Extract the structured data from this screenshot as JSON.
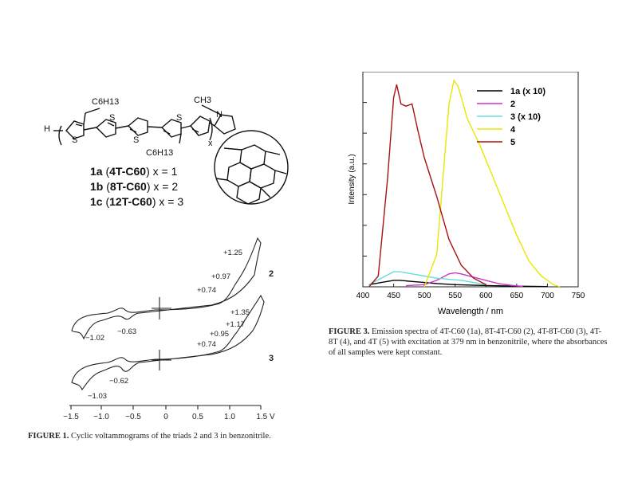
{
  "molecule": {
    "substituent_top": "C6H13",
    "substituent_bottom": "C6H13",
    "methyl": "CH3",
    "end_h": "H",
    "atom_n": "N",
    "atoms_s": [
      "S",
      "S",
      "S",
      "S"
    ],
    "repeat_x": "x",
    "compounds": [
      {
        "id": "1a",
        "name": "4T-C60",
        "x": "x = 1"
      },
      {
        "id": "1b",
        "name": "8T-C60",
        "x": "x = 2"
      },
      {
        "id": "1c",
        "name": "12T-C60",
        "x": "x = 3"
      }
    ]
  },
  "figure1": {
    "caption_label": "FIGURE 1.",
    "caption_text": "Cyclic voltammograms of the triads 2 and 3 in benzonitrile.",
    "curve_labels": [
      "2",
      "3"
    ],
    "annotations_2": [
      "+1.25",
      "+0.97",
      "+0.74",
      "−0.63",
      "−1.02"
    ],
    "annotations_3": [
      "+1.35",
      "+1.17",
      "+0.95",
      "+0.74",
      "−0.62",
      "−1.03"
    ],
    "x_ticks": [
      "−1.5",
      "−1.0",
      "−0.5",
      "0",
      "0.5",
      "1.0",
      "1.5 V"
    ]
  },
  "chart_data": {
    "type": "line",
    "title": "",
    "xlabel": "Wavelength / nm",
    "ylabel": "Intensity (a.u.)",
    "xlim": [
      400,
      750
    ],
    "x_ticks": [
      "400",
      "450",
      "500",
      "550",
      "600",
      "650",
      "700",
      "750"
    ],
    "legend_position": "top-right",
    "series": [
      {
        "name": "1a (x 10)",
        "color": "#000000",
        "x": [
          410,
          430,
          450,
          460,
          480,
          500,
          520,
          550,
          600,
          650,
          700
        ],
        "y": [
          0.01,
          0.02,
          0.03,
          0.03,
          0.025,
          0.02,
          0.015,
          0.01,
          0.006,
          0.003,
          0.001
        ]
      },
      {
        "name": "2",
        "color": "#cc33cc",
        "x": [
          470,
          500,
          520,
          540,
          550,
          560,
          580,
          600,
          620,
          640,
          660
        ],
        "y": [
          0.005,
          0.01,
          0.03,
          0.06,
          0.065,
          0.06,
          0.045,
          0.03,
          0.015,
          0.007,
          0.002
        ]
      },
      {
        "name": "3 (x 10)",
        "color": "#66dddd",
        "x": [
          410,
          430,
          450,
          460,
          480,
          500,
          520,
          540,
          560,
          580,
          600
        ],
        "y": [
          0.01,
          0.04,
          0.07,
          0.07,
          0.06,
          0.05,
          0.04,
          0.035,
          0.03,
          0.02,
          0.01
        ]
      },
      {
        "name": "4",
        "color": "#e8e800",
        "x": [
          500,
          520,
          530,
          540,
          548,
          555,
          570,
          590,
          610,
          630,
          650,
          670,
          690,
          710,
          720
        ],
        "y": [
          0.0,
          0.15,
          0.5,
          0.85,
          0.96,
          0.93,
          0.78,
          0.66,
          0.52,
          0.38,
          0.24,
          0.12,
          0.05,
          0.01,
          0.0
        ]
      },
      {
        "name": "5",
        "color": "#aa1111",
        "x": [
          410,
          425,
          440,
          450,
          455,
          462,
          470,
          480,
          490,
          500,
          520,
          540,
          560,
          580,
          600
        ],
        "y": [
          0.0,
          0.05,
          0.5,
          0.88,
          0.94,
          0.85,
          0.84,
          0.85,
          0.72,
          0.6,
          0.42,
          0.22,
          0.1,
          0.04,
          0.01
        ]
      }
    ]
  },
  "figure3": {
    "caption_label": "FIGURE 3.",
    "caption_text": "Emission spectra of 4T-C60 (1a), 8T-4T-C60 (2), 4T-8T-C60 (3), 4T-8T (4), and 4T (5) with excitation at 379 nm in benzonitrile, where the absorbances of all samples were kept constant."
  }
}
